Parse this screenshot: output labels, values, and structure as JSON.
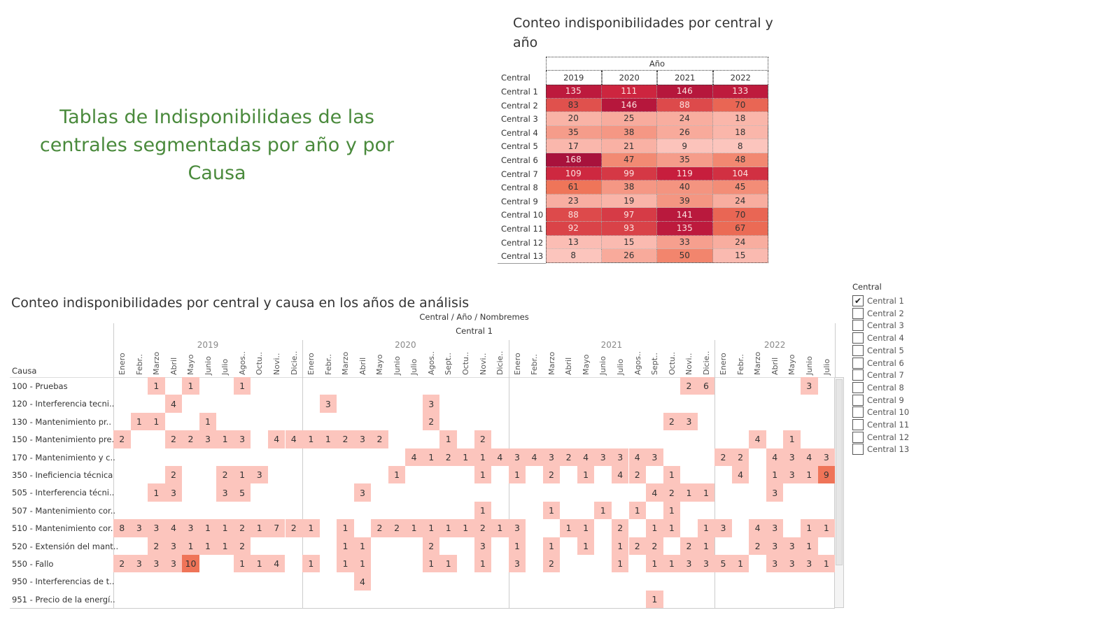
{
  "main_title": "Tablas de Indisponibilidaes de las centrales segmentadas por año y por Causa",
  "filter": {
    "title": "Central",
    "items": [
      "Central 1",
      "Central 2",
      "Central 3",
      "Central 4",
      "Central 5",
      "Central 6",
      "Central 7",
      "Central 8",
      "Central 9",
      "Central 10",
      "Central 11",
      "Central 12",
      "Central 13"
    ],
    "checked": [
      "Central 1"
    ]
  },
  "chart_data": [
    {
      "type": "heatmap",
      "title": "Conteo indisponibilidades por central y año",
      "column_header": "Año",
      "row_header": "Central",
      "columns": [
        "2019",
        "2020",
        "2021",
        "2022"
      ],
      "rows": [
        "Central 1",
        "Central 2",
        "Central 3",
        "Central 4",
        "Central 5",
        "Central 6",
        "Central 7",
        "Central 8",
        "Central 9",
        "Central 10",
        "Central 11",
        "Central 12",
        "Central 13"
      ],
      "values": [
        [
          135,
          111,
          146,
          133
        ],
        [
          83,
          146,
          88,
          70
        ],
        [
          20,
          25,
          24,
          18
        ],
        [
          35,
          38,
          26,
          18
        ],
        [
          17,
          21,
          9,
          8
        ],
        [
          168,
          47,
          35,
          48
        ],
        [
          109,
          99,
          119,
          104
        ],
        [
          61,
          38,
          40,
          45
        ],
        [
          23,
          19,
          39,
          24
        ],
        [
          88,
          97,
          141,
          70
        ],
        [
          92,
          93,
          135,
          67
        ],
        [
          13,
          15,
          33,
          24
        ],
        [
          8,
          26,
          50,
          15
        ]
      ],
      "color_scale": [
        "#fcc5bd",
        "#ef7458",
        "#ca1f3d",
        "#a8123c"
      ]
    },
    {
      "type": "heatmap",
      "title": "Conteo indisponibilidades por central y causa en los años de análisis",
      "column_header": "Central / Año / Nombremes",
      "central": "Central 1",
      "row_header": "Causa",
      "years": [
        {
          "year": "2019",
          "months": [
            "Enero",
            "Febr..",
            "Marzo",
            "Abril",
            "Mayo",
            "Junio",
            "Julio",
            "Agos..",
            "Octu..",
            "Novi..",
            "Dicie.."
          ]
        },
        {
          "year": "2020",
          "months": [
            "Enero",
            "Febr..",
            "Marzo",
            "Abril",
            "Mayo",
            "Junio",
            "Julio",
            "Agos..",
            "Sept..",
            "Octu..",
            "Novi..",
            "Dicie.."
          ]
        },
        {
          "year": "2021",
          "months": [
            "Enero",
            "Febr..",
            "Marzo",
            "Abril",
            "Mayo",
            "Junio",
            "Julio",
            "Agos..",
            "Sept..",
            "Octu..",
            "Novi..",
            "Dicie.."
          ]
        },
        {
          "year": "2022",
          "months": [
            "Enero",
            "Febr..",
            "Marzo",
            "Abril",
            "Mayo",
            "Junio",
            "Julio"
          ]
        }
      ],
      "rows": [
        "100 - Pruebas",
        "120 - Interferencia tecni..",
        "130 - Mantenimiento pr..",
        "150 - Mantenimiento pre..",
        "170 - Mantenimiento y c..",
        "350 - Ineficiencia técnica",
        "505 - Interferencia técni..",
        "507 - Mantenimiento cor..",
        "510 - Mantenimiento cor..",
        "520 - Extensión del mant..",
        "550 - Fallo",
        "950 - Interferencias de t..",
        "951 - Precio de la energí.."
      ],
      "values": [
        [
          null,
          null,
          1,
          null,
          1,
          null,
          null,
          1,
          null,
          null,
          null,
          null,
          null,
          null,
          null,
          null,
          null,
          null,
          null,
          null,
          null,
          null,
          null,
          null,
          null,
          null,
          null,
          null,
          null,
          null,
          null,
          null,
          null,
          2,
          6,
          null,
          null,
          null,
          null,
          null,
          3,
          null
        ],
        [
          null,
          null,
          null,
          4,
          null,
          null,
          null,
          null,
          null,
          null,
          null,
          null,
          3,
          null,
          null,
          null,
          null,
          null,
          3,
          null,
          null,
          null,
          null,
          null,
          null,
          null,
          null,
          null,
          null,
          null,
          null,
          null,
          null,
          null,
          null,
          null,
          null,
          null,
          null,
          null,
          null,
          null
        ],
        [
          null,
          1,
          1,
          null,
          null,
          1,
          null,
          null,
          null,
          null,
          null,
          null,
          null,
          null,
          null,
          null,
          null,
          null,
          2,
          null,
          null,
          null,
          null,
          null,
          null,
          null,
          null,
          null,
          null,
          null,
          null,
          null,
          2,
          3,
          null,
          null,
          null,
          null,
          null,
          null,
          null,
          null
        ],
        [
          2,
          null,
          null,
          2,
          2,
          3,
          1,
          3,
          null,
          4,
          4,
          1,
          1,
          2,
          3,
          2,
          null,
          null,
          null,
          1,
          null,
          2,
          null,
          null,
          null,
          null,
          null,
          null,
          null,
          null,
          null,
          null,
          null,
          null,
          null,
          null,
          null,
          4,
          null,
          1,
          null,
          null
        ],
        [
          null,
          null,
          null,
          null,
          null,
          null,
          null,
          null,
          null,
          null,
          null,
          null,
          null,
          null,
          null,
          null,
          null,
          4,
          1,
          2,
          1,
          1,
          4,
          3,
          4,
          3,
          2,
          4,
          3,
          3,
          4,
          3,
          null,
          null,
          null,
          2,
          2,
          null,
          4,
          3,
          4,
          3
        ],
        [
          null,
          null,
          null,
          2,
          null,
          null,
          2,
          1,
          3,
          null,
          null,
          null,
          null,
          null,
          null,
          null,
          1,
          null,
          null,
          null,
          null,
          1,
          null,
          1,
          null,
          2,
          null,
          1,
          null,
          4,
          2,
          null,
          1,
          null,
          null,
          null,
          4,
          null,
          1,
          3,
          1,
          9
        ],
        [
          null,
          null,
          1,
          3,
          null,
          null,
          3,
          5,
          null,
          null,
          null,
          null,
          null,
          null,
          3,
          null,
          null,
          null,
          null,
          null,
          null,
          null,
          null,
          null,
          null,
          null,
          null,
          null,
          null,
          null,
          null,
          4,
          2,
          1,
          1,
          null,
          null,
          null,
          3,
          null,
          null,
          null
        ],
        [
          null,
          null,
          null,
          null,
          null,
          null,
          null,
          null,
          null,
          null,
          null,
          null,
          null,
          null,
          null,
          null,
          null,
          null,
          null,
          null,
          null,
          1,
          null,
          null,
          null,
          1,
          null,
          null,
          1,
          null,
          1,
          null,
          1,
          null,
          null,
          null,
          null,
          null,
          null,
          null,
          null,
          null
        ],
        [
          8,
          3,
          3,
          4,
          3,
          1,
          1,
          2,
          1,
          7,
          2,
          1,
          null,
          1,
          null,
          2,
          2,
          1,
          1,
          1,
          1,
          2,
          1,
          3,
          null,
          null,
          1,
          1,
          null,
          2,
          null,
          1,
          1,
          null,
          1,
          3,
          null,
          4,
          3,
          null,
          1,
          1
        ],
        [
          null,
          null,
          2,
          3,
          1,
          1,
          1,
          2,
          null,
          null,
          null,
          null,
          null,
          1,
          1,
          null,
          null,
          null,
          2,
          null,
          null,
          3,
          null,
          1,
          null,
          1,
          null,
          1,
          null,
          1,
          2,
          2,
          null,
          2,
          1,
          null,
          null,
          2,
          3,
          3,
          1,
          null
        ],
        [
          2,
          3,
          3,
          3,
          10,
          null,
          null,
          1,
          1,
          4,
          null,
          1,
          null,
          1,
          1,
          null,
          null,
          null,
          1,
          1,
          null,
          1,
          null,
          3,
          null,
          2,
          null,
          null,
          null,
          1,
          null,
          1,
          1,
          3,
          3,
          5,
          1,
          null,
          3,
          3,
          3,
          1
        ],
        [
          null,
          null,
          null,
          null,
          null,
          null,
          null,
          null,
          null,
          null,
          null,
          null,
          null,
          null,
          4,
          null,
          null,
          null,
          null,
          null,
          null,
          null,
          null,
          null,
          null,
          null,
          null,
          null,
          null,
          null,
          null,
          null,
          null,
          null,
          null,
          null,
          null,
          null,
          null,
          null,
          null,
          null
        ],
        [
          null,
          null,
          null,
          null,
          null,
          null,
          null,
          null,
          null,
          null,
          null,
          null,
          null,
          null,
          null,
          null,
          null,
          null,
          null,
          null,
          null,
          null,
          null,
          null,
          null,
          null,
          null,
          null,
          null,
          null,
          null,
          1,
          null,
          null,
          null,
          null,
          null,
          null,
          null,
          null,
          null,
          null
        ]
      ],
      "color_scale": [
        "#fcc5bd",
        "#ef7458"
      ]
    }
  ]
}
